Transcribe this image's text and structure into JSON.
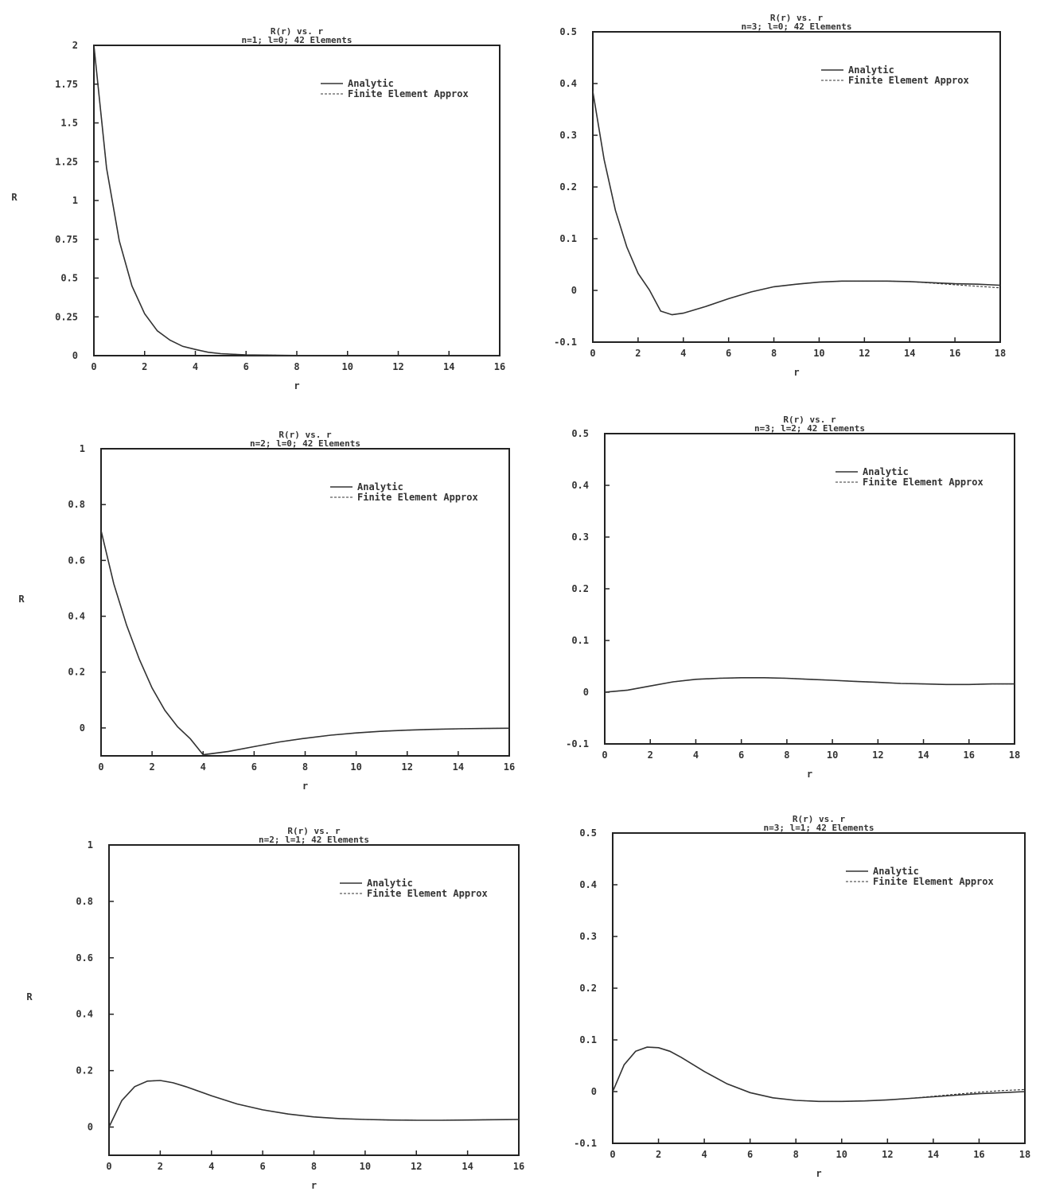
{
  "chart_data": [
    {
      "type": "line",
      "title": "R(r) vs. r",
      "subtitle": "n=1; l=0; 42 Elements",
      "xlabel": "r",
      "ylabel": "R",
      "xlim": [
        0,
        16
      ],
      "ylim": [
        0,
        2
      ],
      "xticks": [
        "0",
        "2",
        "4",
        "6",
        "8",
        "10",
        "12",
        "14",
        "16"
      ],
      "yticks": [
        "0",
        "0.25",
        "0.5",
        "0.75",
        "1",
        "1.25",
        "1.5",
        "1.75",
        "2"
      ],
      "legend_position": "top-right",
      "series": [
        {
          "name": "Analytic",
          "x": [
            0,
            0.5,
            1,
            1.5,
            2,
            2.5,
            3,
            3.5,
            4,
            4.5,
            5,
            6,
            8,
            10,
            12,
            14,
            16
          ],
          "y": [
            2,
            1.21,
            0.74,
            0.45,
            0.27,
            0.16,
            0.1,
            0.06,
            0.04,
            0.022,
            0.013,
            0.005,
            0.001,
            0,
            0,
            0,
            0
          ]
        },
        {
          "name": "Finite Element Approx",
          "x": [
            0,
            0.5,
            1,
            1.5,
            2,
            2.5,
            3,
            3.5,
            4,
            4.5,
            5,
            6,
            8,
            10,
            12,
            14,
            16
          ],
          "y": [
            2,
            1.21,
            0.74,
            0.45,
            0.27,
            0.16,
            0.1,
            0.06,
            0.04,
            0.022,
            0.013,
            0.005,
            0.001,
            0,
            0,
            0,
            0
          ]
        }
      ]
    },
    {
      "type": "line",
      "title": "R(r) vs. r",
      "subtitle": "n=3; l=0; 42 Elements",
      "xlabel": "r",
      "ylabel": "",
      "xlim": [
        0,
        18
      ],
      "ylim": [
        -0.1,
        0.5
      ],
      "xticks": [
        "0",
        "2",
        "4",
        "6",
        "8",
        "10",
        "12",
        "14",
        "16",
        "18"
      ],
      "yticks": [
        "-0.1",
        "0",
        "0.1",
        "0.2",
        "0.3",
        "0.4",
        "0.5"
      ],
      "legend_position": "top-right",
      "series": [
        {
          "name": "Analytic",
          "x": [
            0,
            0.5,
            1,
            1.5,
            2,
            2.5,
            3,
            3.5,
            4,
            5,
            6,
            7,
            8,
            9,
            10,
            11,
            12,
            13,
            14,
            15,
            16,
            17,
            18
          ],
          "y": [
            0.385,
            0.253,
            0.155,
            0.084,
            0.033,
            0.001,
            -0.04,
            -0.047,
            -0.044,
            -0.031,
            -0.016,
            -0.003,
            0.007,
            0.012,
            0.016,
            0.018,
            0.018,
            0.018,
            0.017,
            0.015,
            0.013,
            0.012,
            0.01
          ]
        },
        {
          "name": "Finite Element Approx",
          "x": [
            0,
            0.5,
            1,
            1.5,
            2,
            2.5,
            3,
            3.5,
            4,
            5,
            6,
            7,
            8,
            9,
            10,
            11,
            12,
            13,
            14,
            15,
            16,
            17,
            18
          ],
          "y": [
            0.385,
            0.253,
            0.155,
            0.084,
            0.033,
            0.001,
            -0.04,
            -0.047,
            -0.044,
            -0.031,
            -0.016,
            -0.003,
            0.007,
            0.012,
            0.016,
            0.018,
            0.018,
            0.018,
            0.017,
            0.014,
            0.011,
            0.008,
            0.005
          ]
        }
      ]
    },
    {
      "type": "line",
      "title": "R(r) vs. r",
      "subtitle": "n=2; l=0; 42 Elements",
      "xlabel": "r",
      "ylabel": "R",
      "xlim": [
        0,
        16
      ],
      "ylim": [
        -0.1,
        1
      ],
      "xticks": [
        "0",
        "2",
        "4",
        "6",
        "8",
        "10",
        "12",
        "14",
        "16"
      ],
      "yticks": [
        "0",
        "0.2",
        "0.4",
        "0.6",
        "0.8",
        "1"
      ],
      "legend_position": "top-right",
      "series": [
        {
          "name": "Analytic",
          "x": [
            0,
            0.5,
            1,
            1.5,
            2,
            2.5,
            3,
            3.5,
            4,
            5,
            6,
            7,
            8,
            9,
            10,
            11,
            12,
            13,
            14,
            15,
            16
          ],
          "y": [
            0.707,
            0.516,
            0.368,
            0.246,
            0.143,
            0.063,
            0.004,
            -0.039,
            -0.096,
            -0.084,
            -0.067,
            -0.05,
            -0.037,
            -0.026,
            -0.018,
            -0.012,
            -0.008,
            -0.005,
            -0.003,
            -0.002,
            -0.001
          ]
        },
        {
          "name": "Finite Element Approx",
          "x": [
            0,
            0.5,
            1,
            1.5,
            2,
            2.5,
            3,
            3.5,
            4,
            5,
            6,
            7,
            8,
            9,
            10,
            11,
            12,
            13,
            14,
            15,
            16
          ],
          "y": [
            0.707,
            0.516,
            0.368,
            0.246,
            0.143,
            0.063,
            0.004,
            -0.039,
            -0.096,
            -0.084,
            -0.067,
            -0.05,
            -0.037,
            -0.026,
            -0.018,
            -0.012,
            -0.008,
            -0.005,
            -0.003,
            -0.002,
            -0.001
          ]
        }
      ]
    },
    {
      "type": "line",
      "title": "R(r) vs. r",
      "subtitle": "n=3; l=2; 42 Elements",
      "xlabel": "r",
      "ylabel": "",
      "xlim": [
        0,
        18
      ],
      "ylim": [
        -0.1,
        0.5
      ],
      "xticks": [
        "0",
        "2",
        "4",
        "6",
        "8",
        "10",
        "12",
        "14",
        "16",
        "18"
      ],
      "yticks": [
        "-0.1",
        "0",
        "0.1",
        "0.2",
        "0.3",
        "0.4",
        "0.5"
      ],
      "legend_position": "top-right",
      "series": [
        {
          "name": "Analytic",
          "x": [
            0,
            1,
            2,
            3,
            4,
            5,
            6,
            7,
            8,
            9,
            10,
            11,
            12,
            13,
            14,
            15,
            16,
            17,
            18
          ],
          "y": [
            0,
            0.004,
            0.012,
            0.02,
            0.025,
            0.027,
            0.028,
            0.028,
            0.027,
            0.025,
            0.023,
            0.021,
            0.019,
            0.017,
            0.016,
            0.015,
            0.015,
            0.016,
            0.016
          ]
        },
        {
          "name": "Finite Element Approx",
          "x": [
            0,
            1,
            2,
            3,
            4,
            5,
            6,
            7,
            8,
            9,
            10,
            11,
            12,
            13,
            14,
            15,
            16,
            17,
            18
          ],
          "y": [
            0,
            0.004,
            0.012,
            0.02,
            0.025,
            0.027,
            0.028,
            0.028,
            0.027,
            0.025,
            0.023,
            0.021,
            0.019,
            0.017,
            0.016,
            0.015,
            0.015,
            0.016,
            0.016
          ]
        }
      ]
    },
    {
      "type": "line",
      "title": "R(r) vs. r",
      "subtitle": "n=2; l=1; 42 Elements",
      "xlabel": "r",
      "ylabel": "R",
      "xlim": [
        0,
        16
      ],
      "ylim": [
        -0.1,
        1
      ],
      "xticks": [
        "0",
        "2",
        "4",
        "6",
        "8",
        "10",
        "12",
        "14",
        "16"
      ],
      "yticks": [
        "0",
        "0.2",
        "0.4",
        "0.6",
        "0.8",
        "1"
      ],
      "legend_position": "top-right",
      "series": [
        {
          "name": "Analytic",
          "x": [
            0,
            0.5,
            1,
            1.5,
            2,
            2.5,
            3,
            4,
            5,
            6,
            7,
            8,
            9,
            10,
            11,
            12,
            13,
            14,
            15,
            16
          ],
          "y": [
            0,
            0.094,
            0.143,
            0.163,
            0.165,
            0.157,
            0.143,
            0.111,
            0.082,
            0.061,
            0.046,
            0.036,
            0.03,
            0.027,
            0.025,
            0.024,
            0.024,
            0.025,
            0.026,
            0.027
          ]
        },
        {
          "name": "Finite Element Approx",
          "x": [
            0,
            0.5,
            1,
            1.5,
            2,
            2.5,
            3,
            4,
            5,
            6,
            7,
            8,
            9,
            10,
            11,
            12,
            13,
            14,
            15,
            16
          ],
          "y": [
            0,
            0.094,
            0.143,
            0.163,
            0.165,
            0.157,
            0.143,
            0.111,
            0.082,
            0.061,
            0.046,
            0.036,
            0.03,
            0.027,
            0.025,
            0.024,
            0.024,
            0.025,
            0.026,
            0.027
          ]
        }
      ]
    },
    {
      "type": "line",
      "title": "R(r) vs. r",
      "subtitle": "n=3; l=1; 42 Elements",
      "xlabel": "r",
      "ylabel": "",
      "xlim": [
        0,
        18
      ],
      "ylim": [
        -0.1,
        0.5
      ],
      "xticks": [
        "0",
        "2",
        "4",
        "6",
        "8",
        "10",
        "12",
        "14",
        "16",
        "18"
      ],
      "yticks": [
        "-0.1",
        "0",
        "0.1",
        "0.2",
        "0.3",
        "0.4",
        "0.5"
      ],
      "legend_position": "top-right",
      "series": [
        {
          "name": "Analytic",
          "x": [
            0,
            0.5,
            1,
            1.5,
            2,
            2.5,
            3,
            4,
            5,
            6,
            7,
            8,
            9,
            10,
            11,
            12,
            13,
            14,
            15,
            16,
            17,
            18
          ],
          "y": [
            0,
            0.052,
            0.078,
            0.086,
            0.085,
            0.078,
            0.066,
            0.039,
            0.015,
            -0.002,
            -0.012,
            -0.017,
            -0.019,
            -0.019,
            -0.018,
            -0.016,
            -0.013,
            -0.01,
            -0.007,
            -0.004,
            -0.002,
            0.0
          ]
        },
        {
          "name": "Finite Element Approx",
          "x": [
            0,
            0.5,
            1,
            1.5,
            2,
            2.5,
            3,
            4,
            5,
            6,
            7,
            8,
            9,
            10,
            11,
            12,
            13,
            14,
            15,
            16,
            17,
            18
          ],
          "y": [
            0,
            0.052,
            0.078,
            0.086,
            0.085,
            0.078,
            0.066,
            0.039,
            0.015,
            -0.002,
            -0.012,
            -0.017,
            -0.019,
            -0.019,
            -0.018,
            -0.016,
            -0.013,
            -0.009,
            -0.005,
            -0.001,
            0.002,
            0.004
          ]
        }
      ]
    }
  ]
}
